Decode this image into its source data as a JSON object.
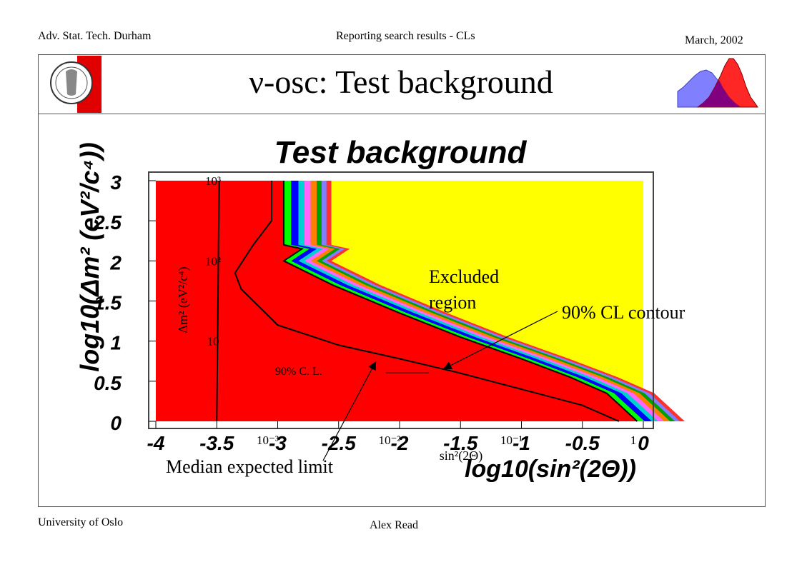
{
  "header": {
    "left": "Adv. Stat. Tech. Durham",
    "center": "Reporting search results - CLs",
    "right": "March, 2002"
  },
  "footer": {
    "left": "University of Oslo",
    "center": "Alex Read"
  },
  "slide_title": "ν-osc: Test background",
  "colors": {
    "excluded": "#ff0000",
    "allowed": "#ffff00",
    "band_colors": [
      "#00ff00",
      "#0000ff",
      "#00d0d0",
      "#ff66ff",
      "#ff7f00",
      "#00a000",
      "#7f7fff",
      "#ff3030"
    ],
    "logo_red": "#e00000"
  },
  "chart_data": {
    "type": "area",
    "title": "Test background",
    "xlabel": "log10(sin²(2Θ))",
    "ylabel": "log10(Δm² (eV²/c⁴))",
    "inner_xlabel": "sin²(2Θ)",
    "inner_ylabel": "Δm² (eV²/c⁴)",
    "xlim": [
      -4,
      0
    ],
    "ylim": [
      0,
      3
    ],
    "x_ticks": [
      "-4",
      "-3.5",
      "-3",
      "-2.5",
      "-2",
      "-1.5",
      "-1",
      "-0.5",
      "0"
    ],
    "y_ticks": [
      "0",
      "0.5",
      "1",
      "1.5",
      "2",
      "2.5",
      "3"
    ],
    "inner_x_ticks": [
      "10⁻³",
      "10⁻²",
      "10⁻¹",
      "1"
    ],
    "inner_y_ticks": [
      "10",
      "10²",
      "10³"
    ],
    "contour_90": {
      "name": "90% CL contour",
      "x": [
        -2.95,
        -2.95,
        -2.95,
        -2.8,
        -2.95,
        -2.55,
        -2.0,
        -1.5,
        -1.0,
        -0.6,
        -0.3,
        -0.05
      ],
      "y": [
        3.0,
        2.5,
        2.2,
        2.15,
        2.0,
        1.7,
        1.35,
        1.05,
        0.78,
        0.55,
        0.35,
        0.0
      ]
    },
    "median_expected": {
      "name": "Median expected limit",
      "x": [
        -3.05,
        -3.05,
        -3.2,
        -3.35,
        -3.3,
        -3.0,
        -2.5,
        -2.0,
        -1.5,
        -1.0,
        -0.5,
        -0.2
      ],
      "y": [
        3.0,
        2.5,
        2.2,
        1.85,
        1.65,
        1.2,
        0.95,
        0.78,
        0.6,
        0.4,
        0.2,
        0.0
      ]
    },
    "band_widths": [
      0.06,
      0.06,
      0.05,
      0.05,
      0.05,
      0.04,
      0.04,
      0.04
    ],
    "annotations": {
      "excluded": [
        "Excluded",
        "region"
      ],
      "contour_label": "90% CL contour",
      "median_label": "Median expected limit",
      "inner_cl_label": "90% C. L."
    }
  }
}
